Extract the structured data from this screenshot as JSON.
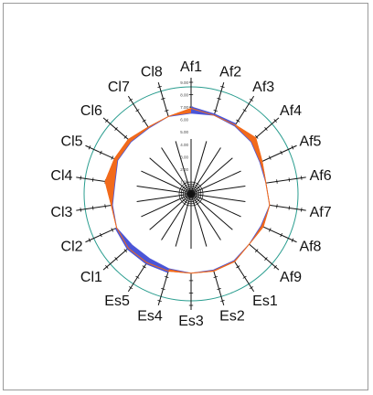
{
  "chart_data": {
    "type": "radar",
    "title": "",
    "axes": [
      "Af1",
      "Af2",
      "Af3",
      "Af4",
      "Af5",
      "Af6",
      "Af7",
      "Af8",
      "Af9",
      "Es1",
      "Es2",
      "Es3",
      "Es4",
      "Es5",
      "Cl1",
      "Cl2",
      "Cl3",
      "Cl4",
      "Cl5",
      "Cl6",
      "Cl7",
      "Cl8"
    ],
    "r_ticks": [
      "1.00",
      "2.00",
      "3.00",
      "4.00",
      "5.00",
      "6.00",
      "7.00",
      "8.00",
      "9.00"
    ],
    "rlim": [
      0,
      9
    ],
    "series": [
      {
        "values": [
          6.9,
          6.6,
          6.6,
          6.9,
          6.3,
          6.1,
          6.4,
          6.4,
          6.2,
          6.5,
          6.5,
          6.4,
          6.5,
          6.6,
          6.7,
          6.6,
          6.5,
          7.0,
          6.8,
          6.7,
          6.4,
          6.5
        ]
      },
      {
        "values": [
          6.5,
          6.6,
          6.5,
          6.4,
          6.1,
          6.1,
          6.4,
          6.2,
          6.2,
          6.4,
          6.4,
          6.4,
          6.3,
          6.2,
          6.3,
          6.6,
          6.4,
          6.2,
          6.5,
          6.4,
          6.3,
          6.5
        ]
      }
    ],
    "colors": {
      "above": "#f26a1b",
      "below": "#4a55d8",
      "outer_circle": "#2a9d8f",
      "axes": "#111111"
    }
  }
}
